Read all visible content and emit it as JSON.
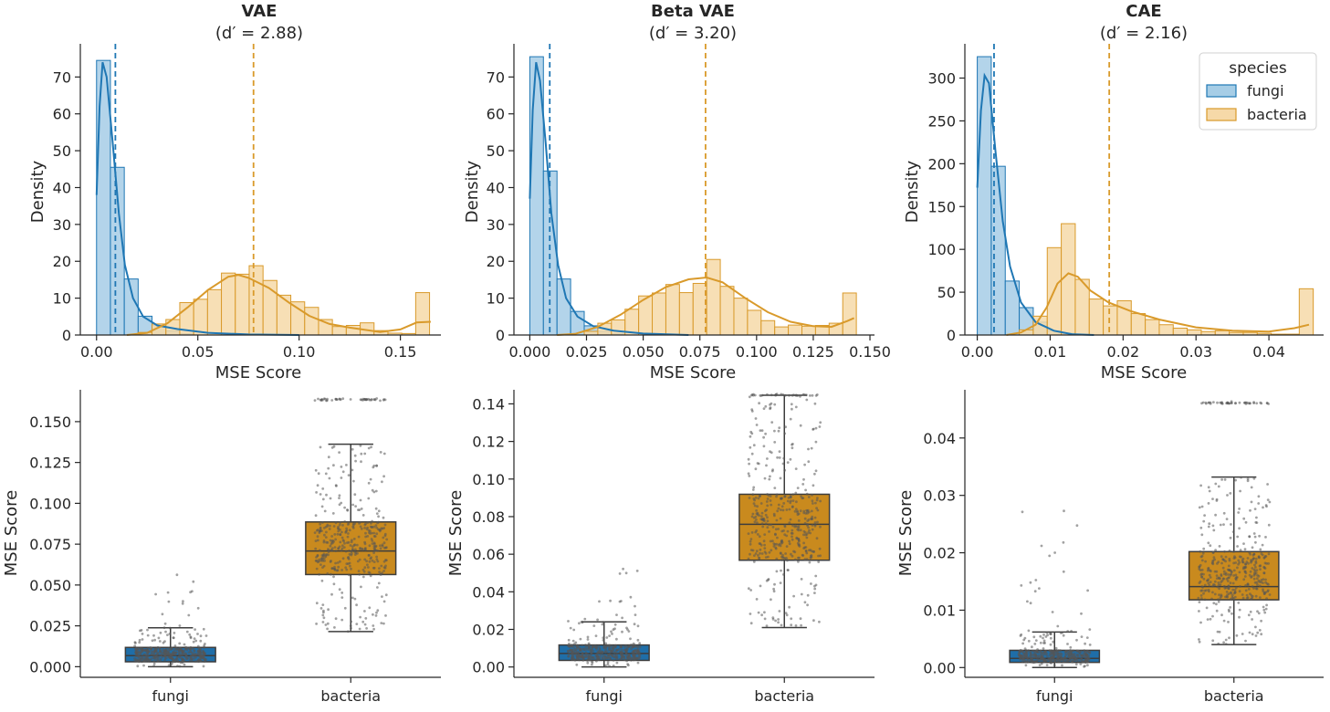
{
  "colors": {
    "fungi": "#1f77b4",
    "fungi_fill": "#a6cde6",
    "bacteria": "#d99a2b",
    "bacteria_fill": "#f6d9a8",
    "fungi_box": "#1f6ea8",
    "bacteria_box": "#c98a1e",
    "points": "#555555",
    "axis": "#262626"
  },
  "legend": {
    "title": "species",
    "entries": [
      "fungi",
      "bacteria"
    ],
    "placement": "upper-right of third histogram"
  },
  "chart_data": [
    {
      "type": "histogram",
      "title": "VAE",
      "subtitle_prefix": "(d′ = ",
      "subtitle_value": "2.88",
      "subtitle_suffix": ")",
      "xlabel": "MSE Score",
      "ylabel": "Density",
      "xlim": [
        -0.008,
        0.17
      ],
      "ylim": [
        0,
        79
      ],
      "xticks": [
        0.0,
        0.05,
        0.1,
        0.15
      ],
      "xtick_labels": [
        "0.00",
        "0.05",
        "0.10",
        "0.15"
      ],
      "yticks": [
        0,
        10,
        20,
        30,
        40,
        50,
        60,
        70
      ],
      "ytick_labels": [
        "0",
        "10",
        "20",
        "30",
        "40",
        "50",
        "60",
        "70"
      ],
      "bin_edges_start": 0.0,
      "bin_width": 0.00685,
      "series": [
        {
          "name": "fungi",
          "density": [
            74.5,
            45.5,
            15.2,
            5.1,
            2.7,
            1.1,
            0.3
          ],
          "mean": 0.0093,
          "kde": [
            [
              0.0,
              38
            ],
            [
              0.0015,
              62
            ],
            [
              0.003,
              74
            ],
            [
              0.005,
              70
            ],
            [
              0.008,
              52
            ],
            [
              0.011,
              33
            ],
            [
              0.014,
              19
            ],
            [
              0.018,
              10
            ],
            [
              0.023,
              5
            ],
            [
              0.03,
              2.6
            ],
            [
              0.04,
              1.6
            ],
            [
              0.055,
              0.6
            ],
            [
              0.075,
              0.15
            ],
            [
              0.1,
              0
            ]
          ]
        },
        {
          "name": "bacteria",
          "density": [
            0,
            0,
            0,
            0.7,
            3.0,
            4.2,
            8.8,
            9.7,
            12.3,
            16.8,
            16.5,
            18.8,
            14.8,
            10.8,
            9.0,
            7.5,
            4.2,
            2.3,
            2.6,
            3.3,
            1.2,
            0.5,
            0.4,
            11.5
          ],
          "mean": 0.0775,
          "kde": [
            [
              0.015,
              0
            ],
            [
              0.025,
              0.6
            ],
            [
              0.035,
              3.2
            ],
            [
              0.045,
              7.5
            ],
            [
              0.055,
              12.2
            ],
            [
              0.065,
              15.8
            ],
            [
              0.07,
              16.3
            ],
            [
              0.075,
              15.5
            ],
            [
              0.085,
              12.8
            ],
            [
              0.095,
              8.8
            ],
            [
              0.105,
              5.2
            ],
            [
              0.115,
              3.0
            ],
            [
              0.125,
              2.0
            ],
            [
              0.14,
              0.8
            ],
            [
              0.15,
              1.5
            ],
            [
              0.158,
              3.4
            ],
            [
              0.165,
              3.6
            ]
          ]
        }
      ]
    },
    {
      "type": "histogram",
      "title": "Beta VAE",
      "subtitle_prefix": "(d′ = ",
      "subtitle_value": "3.20",
      "subtitle_suffix": ")",
      "xlabel": "MSE Score",
      "ylabel": "Density",
      "xlim": [
        -0.007,
        0.152
      ],
      "ylim": [
        0,
        79
      ],
      "xticks": [
        0.0,
        0.025,
        0.05,
        0.075,
        0.1,
        0.125,
        0.15
      ],
      "xtick_labels": [
        "0.000",
        "0.025",
        "0.050",
        "0.075",
        "0.100",
        "0.125",
        "0.150"
      ],
      "yticks": [
        0,
        10,
        20,
        30,
        40,
        50,
        60,
        70
      ],
      "ytick_labels": [
        "0",
        "10",
        "20",
        "30",
        "40",
        "50",
        "60",
        "70"
      ],
      "bin_edges_start": 0.0,
      "bin_width": 0.006,
      "series": [
        {
          "name": "fungi",
          "density": [
            75.5,
            44.5,
            15.2,
            6.4,
            2.5,
            1.0,
            0.3
          ],
          "mean": 0.0088,
          "kde": [
            [
              0.0,
              37
            ],
            [
              0.0013,
              61
            ],
            [
              0.0028,
              74
            ],
            [
              0.0045,
              69
            ],
            [
              0.007,
              52
            ],
            [
              0.0095,
              33
            ],
            [
              0.0125,
              19
            ],
            [
              0.016,
              10
            ],
            [
              0.021,
              5
            ],
            [
              0.028,
              2.4
            ],
            [
              0.037,
              1.2
            ],
            [
              0.05,
              0.4
            ],
            [
              0.07,
              0
            ]
          ]
        },
        {
          "name": "bacteria",
          "density": [
            0,
            0,
            0,
            0,
            1.0,
            3.2,
            4.1,
            7.0,
            10.6,
            11.4,
            13.7,
            11.5,
            14.0,
            20.5,
            13.2,
            10.0,
            6.7,
            3.9,
            2.2,
            2.7,
            2.4,
            2.6,
            3.2,
            11.4
          ],
          "mean": 0.0775,
          "kde": [
            [
              0.012,
              0
            ],
            [
              0.02,
              0.3
            ],
            [
              0.03,
              2.2
            ],
            [
              0.04,
              5.5
            ],
            [
              0.05,
              9.5
            ],
            [
              0.06,
              13.0
            ],
            [
              0.07,
              15.1
            ],
            [
              0.078,
              15.6
            ],
            [
              0.085,
              14.3
            ],
            [
              0.095,
              10.0
            ],
            [
              0.105,
              6.2
            ],
            [
              0.115,
              3.6
            ],
            [
              0.125,
              2.4
            ],
            [
              0.133,
              2.2
            ],
            [
              0.14,
              3.8
            ],
            [
              0.143,
              4.6
            ]
          ]
        }
      ]
    },
    {
      "type": "histogram",
      "title": "CAE",
      "subtitle_prefix": "(d′ = ",
      "subtitle_value": "2.16",
      "subtitle_suffix": ")",
      "xlabel": "MSE Score",
      "ylabel": "Density",
      "xlim": [
        -0.0017,
        0.0475
      ],
      "ylim": [
        0,
        340
      ],
      "xticks": [
        0.0,
        0.01,
        0.02,
        0.03,
        0.04
      ],
      "xtick_labels": [
        "0.00",
        "0.01",
        "0.02",
        "0.03",
        "0.04"
      ],
      "yticks": [
        0,
        50,
        100,
        150,
        200,
        250,
        300
      ],
      "ytick_labels": [
        "0",
        "50",
        "100",
        "150",
        "200",
        "250",
        "300"
      ],
      "bin_edges_start": 0.0,
      "bin_width": 0.00192,
      "series": [
        {
          "name": "fungi",
          "density": [
            325,
            197,
            63,
            32,
            15,
            5,
            2
          ],
          "mean": 0.0023,
          "kde": [
            [
              0.0,
              172
            ],
            [
              0.0005,
              262
            ],
            [
              0.001,
              303
            ],
            [
              0.0016,
              294
            ],
            [
              0.0025,
              215
            ],
            [
              0.0035,
              133
            ],
            [
              0.0045,
              80
            ],
            [
              0.006,
              38
            ],
            [
              0.008,
              15
            ],
            [
              0.0105,
              5
            ],
            [
              0.013,
              1
            ],
            [
              0.016,
              0
            ]
          ]
        },
        {
          "name": "bacteria",
          "density": [
            0,
            0,
            0,
            6,
            22,
            102,
            130,
            65,
            42,
            34,
            40,
            25,
            18,
            12,
            8,
            6,
            4,
            5,
            3,
            3,
            2,
            1,
            1,
            54
          ],
          "mean": 0.0181,
          "kde": [
            [
              0.004,
              0
            ],
            [
              0.006,
              3
            ],
            [
              0.008,
              12
            ],
            [
              0.0095,
              32
            ],
            [
              0.011,
              60
            ],
            [
              0.0125,
              72
            ],
            [
              0.0138,
              68
            ],
            [
              0.0155,
              52
            ],
            [
              0.018,
              38
            ],
            [
              0.021,
              28
            ],
            [
              0.025,
              18
            ],
            [
              0.03,
              9
            ],
            [
              0.035,
              5
            ],
            [
              0.04,
              4
            ],
            [
              0.0435,
              8
            ],
            [
              0.0455,
              12
            ]
          ]
        }
      ]
    },
    {
      "type": "box",
      "categories": [
        "fungi",
        "bacteria"
      ],
      "xlabel": "",
      "ylabel": "MSE Score",
      "ylim": [
        -0.0065,
        0.1695
      ],
      "yticks": [
        0.0,
        0.025,
        0.05,
        0.075,
        0.1,
        0.125,
        0.15
      ],
      "ytick_labels": [
        "0.000",
        "0.025",
        "0.050",
        "0.075",
        "0.100",
        "0.125",
        "0.150"
      ],
      "boxes": [
        {
          "name": "fungi",
          "whisker_low": 0.0,
          "q1": 0.003,
          "median": 0.0068,
          "q3": 0.0118,
          "whisker_high": 0.0238,
          "max_point": 0.059
        },
        {
          "name": "bacteria",
          "whisker_low": 0.0215,
          "q1": 0.0564,
          "median": 0.0708,
          "q3": 0.0886,
          "whisker_high": 0.1362,
          "outlier_cluster": 0.1635
        }
      ]
    },
    {
      "type": "box",
      "categories": [
        "fungi",
        "bacteria"
      ],
      "xlabel": "",
      "ylabel": "MSE Score",
      "ylim": [
        -0.0055,
        0.1475
      ],
      "yticks": [
        0.0,
        0.02,
        0.04,
        0.06,
        0.08,
        0.1,
        0.12,
        0.14
      ],
      "ytick_labels": [
        "0.00",
        "0.02",
        "0.04",
        "0.06",
        "0.08",
        "0.10",
        "0.12",
        "0.14"
      ],
      "boxes": [
        {
          "name": "fungi",
          "whisker_low": 0.0,
          "q1": 0.0035,
          "median": 0.0072,
          "q3": 0.0117,
          "whisker_high": 0.024,
          "max_point": 0.063
        },
        {
          "name": "bacteria",
          "whisker_low": 0.021,
          "q1": 0.0568,
          "median": 0.0759,
          "q3": 0.0919,
          "whisker_high": 0.1446,
          "outlier_cluster": 0.1446
        }
      ]
    },
    {
      "type": "box",
      "categories": [
        "fungi",
        "bacteria"
      ],
      "xlabel": "",
      "ylabel": "MSE Score",
      "ylim": [
        -0.0017,
        0.0484
      ],
      "yticks": [
        0.0,
        0.01,
        0.02,
        0.03,
        0.04
      ],
      "ytick_labels": [
        "0.00",
        "0.01",
        "0.02",
        "0.03",
        "0.04"
      ],
      "boxes": [
        {
          "name": "fungi",
          "whisker_low": 0.0,
          "q1": 0.0009,
          "median": 0.0016,
          "q3": 0.003,
          "whisker_high": 0.0062,
          "max_point": 0.028
        },
        {
          "name": "bacteria",
          "whisker_low": 0.004,
          "q1": 0.0118,
          "median": 0.0141,
          "q3": 0.0202,
          "whisker_high": 0.0332,
          "outlier_cluster": 0.0461
        }
      ]
    }
  ]
}
